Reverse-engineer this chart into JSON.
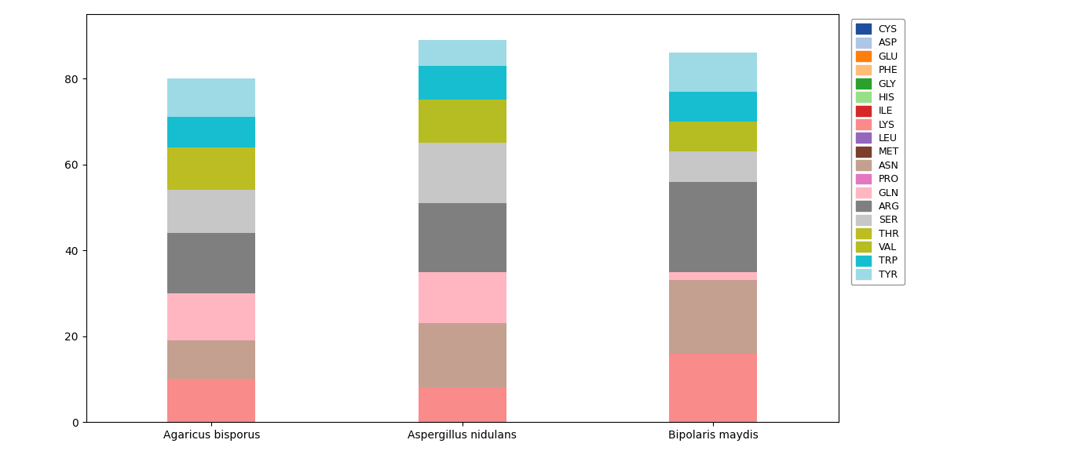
{
  "categories": [
    "Agaricus bisporus",
    "Aspergillus nidulans",
    "Bipolaris maydis"
  ],
  "segments": [
    {
      "label": "CYS",
      "color": "#1f4e9e",
      "values": [
        0,
        0,
        0
      ]
    },
    {
      "label": "ASP",
      "color": "#aec6e8",
      "values": [
        0,
        0,
        0
      ]
    },
    {
      "label": "GLU",
      "color": "#ff7f0e",
      "values": [
        0,
        0,
        0
      ]
    },
    {
      "label": "PHE",
      "color": "#ffbb78",
      "values": [
        0,
        0,
        0
      ]
    },
    {
      "label": "GLY",
      "color": "#2ca02c",
      "values": [
        0,
        0,
        0
      ]
    },
    {
      "label": "HIS",
      "color": "#98df8a",
      "values": [
        0,
        0,
        0
      ]
    },
    {
      "label": "ILE",
      "color": "#d62728",
      "values": [
        0,
        0,
        0
      ]
    },
    {
      "label": "LYS",
      "color": "#f98b8b",
      "values": [
        10,
        8,
        16
      ]
    },
    {
      "label": "LEU",
      "color": "#9467bd",
      "values": [
        0,
        0,
        0
      ]
    },
    {
      "label": "MET",
      "color": "#7b3f2b",
      "values": [
        0,
        0,
        0
      ]
    },
    {
      "label": "ASN",
      "color": "#c4a090",
      "values": [
        9,
        15,
        17
      ]
    },
    {
      "label": "PRO",
      "color": "#e377c2",
      "values": [
        0,
        0,
        0
      ]
    },
    {
      "label": "GLN",
      "color": "#ffb6c1",
      "values": [
        11,
        12,
        2
      ]
    },
    {
      "label": "ARG",
      "color": "#7f7f7f",
      "values": [
        14,
        16,
        21
      ]
    },
    {
      "label": "SER",
      "color": "#c7c7c7",
      "values": [
        10,
        14,
        7
      ]
    },
    {
      "label": "THR",
      "color": "#bcbd22",
      "values": [
        10,
        0,
        0
      ]
    },
    {
      "label": "VAL",
      "color": "#b5bd22",
      "values": [
        0,
        10,
        7
      ]
    },
    {
      "label": "TRP",
      "color": "#17becf",
      "values": [
        7,
        8,
        7
      ]
    },
    {
      "label": "TYR",
      "color": "#9edae5",
      "values": [
        9,
        6,
        9
      ]
    }
  ],
  "ylim": [
    0,
    95
  ],
  "xlim": [
    -0.5,
    2.5
  ],
  "figsize": [
    13.69,
    5.98
  ],
  "dpi": 100,
  "bar_width": 0.35,
  "legend_fontsize": 9,
  "tick_fontsize": 10,
  "yticks": [
    0,
    20,
    40,
    60,
    80
  ]
}
